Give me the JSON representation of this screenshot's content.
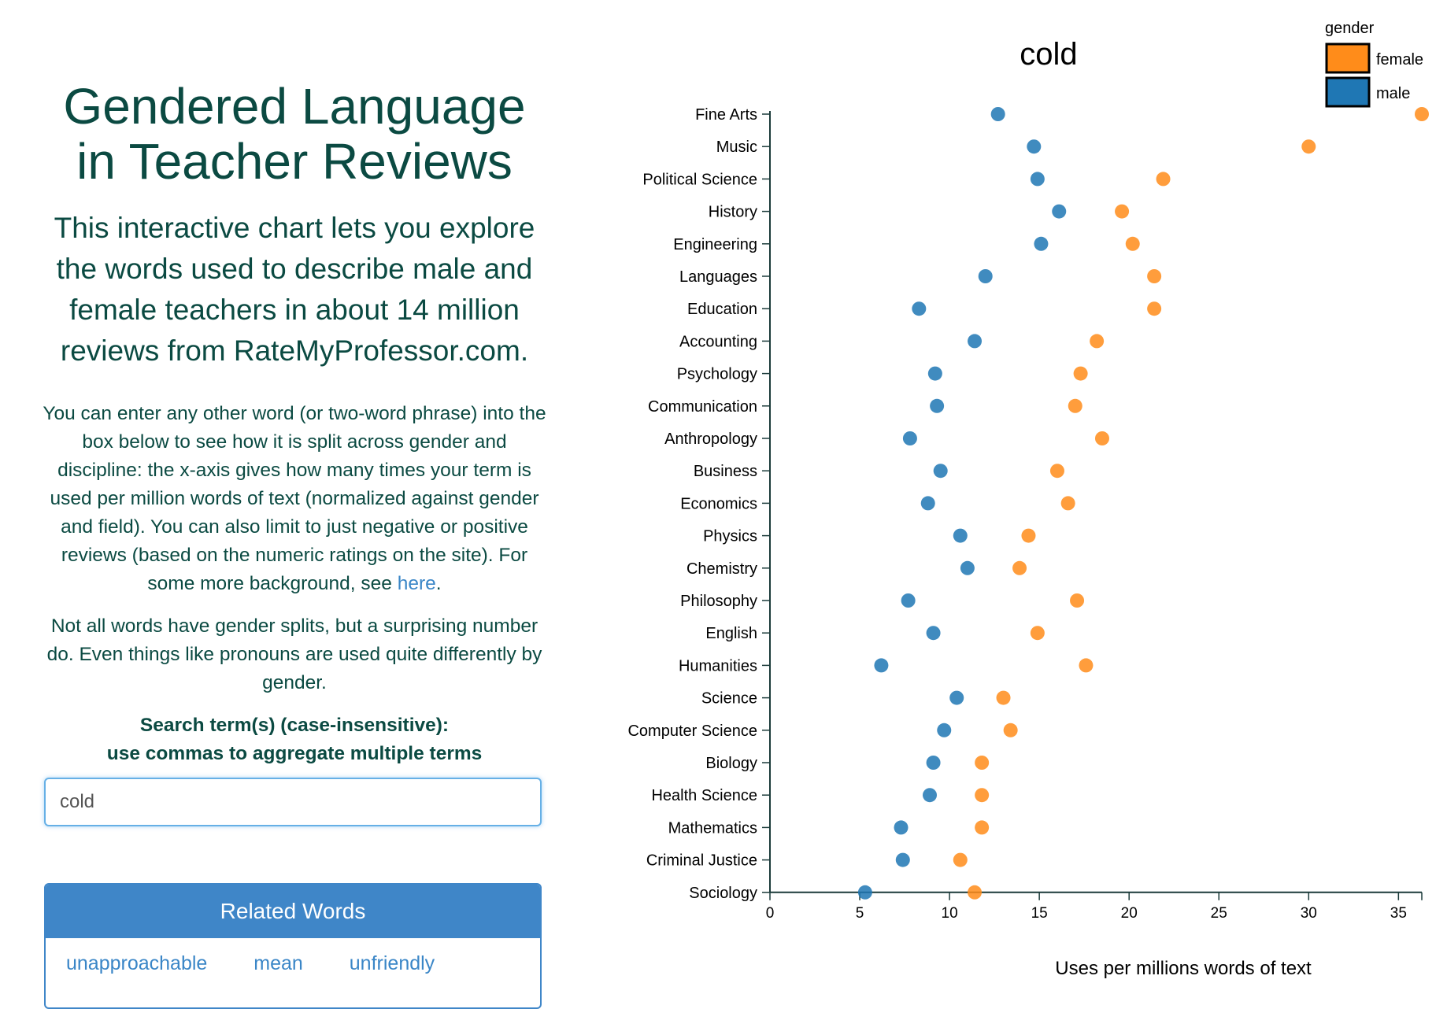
{
  "left": {
    "title_line1": "Gendered Language",
    "title_line2": "in Teacher Reviews",
    "intro": "This interactive chart lets you explore the words used to describe male and female teachers in about 14 million reviews from RateMyProfessor.com.",
    "paragraph1": "You can enter any other word (or two-word phrase) into the box below to see how it is split across gender and discipline: the x-axis gives how many times your term is used per million words of text (normalized against gender and field). You can also limit to just negative or positive reviews (based on the numeric ratings on the site). For some more background, see",
    "paragraph1_link": "here",
    "paragraph1_end": ".",
    "paragraph2": "Not all words have gender splits, but a surprising number do. Even things like pronouns are used quite differently by gender.",
    "search_label_line1": "Search term(s) (case-insensitive):",
    "search_label_line2": "use commas to aggregate multiple terms",
    "search_value": "cold",
    "related_heading": "Related Words",
    "related_words": [
      "unapproachable",
      "mean",
      "unfriendly"
    ]
  },
  "chart_data": {
    "type": "scatter",
    "title": "cold",
    "xlabel": "Uses per millions words of text",
    "ylabel": "",
    "xlim": [
      0,
      36.3
    ],
    "xticks": [
      0,
      5,
      10,
      15,
      20,
      25,
      30,
      35
    ],
    "legend_title": "gender",
    "legend_position": "top-right",
    "categories": [
      "Fine Arts",
      "Music",
      "Political Science",
      "History",
      "Engineering",
      "Languages",
      "Education",
      "Accounting",
      "Psychology",
      "Communication",
      "Anthropology",
      "Business",
      "Economics",
      "Physics",
      "Chemistry",
      "Philosophy",
      "English",
      "Humanities",
      "Science",
      "Computer Science",
      "Biology",
      "Health Science",
      "Mathematics",
      "Criminal Justice",
      "Sociology"
    ],
    "series": [
      {
        "name": "female",
        "color": "#ff8c1a",
        "values": [
          36.3,
          30.0,
          21.9,
          19.6,
          20.2,
          21.4,
          21.4,
          18.2,
          17.3,
          17.0,
          18.5,
          16.0,
          16.6,
          14.4,
          13.9,
          17.1,
          14.9,
          17.6,
          13.0,
          13.4,
          11.8,
          11.8,
          11.8,
          10.6,
          11.4
        ]
      },
      {
        "name": "male",
        "color": "#1f77b4",
        "values": [
          12.7,
          14.7,
          14.9,
          16.1,
          15.1,
          12.0,
          8.3,
          11.4,
          9.2,
          9.3,
          7.8,
          9.5,
          8.8,
          10.6,
          11.0,
          7.7,
          9.1,
          6.2,
          10.4,
          9.7,
          9.1,
          8.9,
          7.3,
          7.4,
          5.3
        ]
      }
    ]
  }
}
